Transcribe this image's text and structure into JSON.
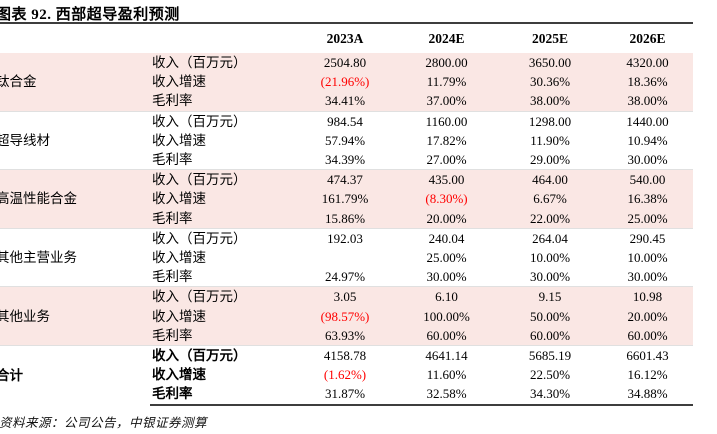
{
  "title": "图表 92. 西部超导盈利预测",
  "columns": [
    "2023A",
    "2024E",
    "2025E",
    "2026E"
  ],
  "groups": [
    {
      "name": "钛合金",
      "rows": [
        {
          "label": "收入（百万元）",
          "values": [
            "2504.80",
            "2800.00",
            "3650.00",
            "4320.00"
          ]
        },
        {
          "label": "收入增速",
          "values": [
            "(21.96%)",
            "11.79%",
            "30.36%",
            "18.36%"
          ]
        },
        {
          "label": "毛利率",
          "values": [
            "34.41%",
            "37.00%",
            "38.00%",
            "38.00%"
          ]
        }
      ]
    },
    {
      "name": "超导线材",
      "rows": [
        {
          "label": "收入（百万元）",
          "values": [
            "984.54",
            "1160.00",
            "1298.00",
            "1440.00"
          ]
        },
        {
          "label": "收入增速",
          "values": [
            "57.94%",
            "17.82%",
            "11.90%",
            "10.94%"
          ]
        },
        {
          "label": "毛利率",
          "values": [
            "34.39%",
            "27.00%",
            "29.00%",
            "30.00%"
          ]
        }
      ]
    },
    {
      "name": "高温性能合金",
      "rows": [
        {
          "label": "收入（百万元）",
          "values": [
            "474.37",
            "435.00",
            "464.00",
            "540.00"
          ]
        },
        {
          "label": "收入增速",
          "values": [
            "161.79%",
            "(8.30%)",
            "6.67%",
            "16.38%"
          ]
        },
        {
          "label": "毛利率",
          "values": [
            "15.86%",
            "20.00%",
            "22.00%",
            "25.00%"
          ]
        }
      ]
    },
    {
      "name": "其他主营业务",
      "rows": [
        {
          "label": "收入（百万元）",
          "values": [
            "192.03",
            "240.04",
            "264.04",
            "290.45"
          ]
        },
        {
          "label": "收入增速",
          "values": [
            "",
            "25.00%",
            "10.00%",
            "10.00%"
          ]
        },
        {
          "label": "毛利率",
          "values": [
            "24.97%",
            "30.00%",
            "30.00%",
            "30.00%"
          ]
        }
      ]
    },
    {
      "name": "其他业务",
      "rows": [
        {
          "label": "收入（百万元）",
          "values": [
            "3.05",
            "6.10",
            "9.15",
            "10.98"
          ]
        },
        {
          "label": "收入增速",
          "values": [
            "(98.57%)",
            "100.00%",
            "50.00%",
            "20.00%"
          ]
        },
        {
          "label": "毛利率",
          "values": [
            "63.93%",
            "60.00%",
            "60.00%",
            "60.00%"
          ]
        }
      ]
    },
    {
      "name": "合计",
      "rows": [
        {
          "label": "收入（百万元）",
          "values": [
            "4158.78",
            "4641.14",
            "5685.19",
            "6601.43"
          ]
        },
        {
          "label": "收入增速",
          "values": [
            "(1.62%)",
            "11.60%",
            "22.50%",
            "16.12%"
          ]
        },
        {
          "label": "毛利率",
          "values": [
            "31.87%",
            "32.58%",
            "34.30%",
            "34.88%"
          ]
        }
      ]
    }
  ],
  "footer": "资料来源：公司公告，中银证券测算",
  "colors": {
    "band": "#fae7e4",
    "negative_text": "#ff0000",
    "rule": "#3d3d3d",
    "separator": "#e0e0e0"
  }
}
